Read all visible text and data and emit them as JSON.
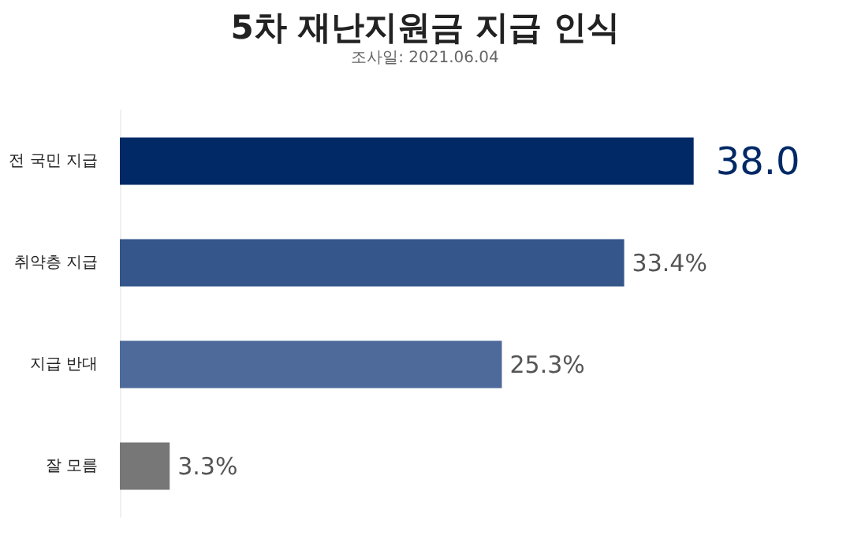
{
  "chart_data": {
    "type": "bar",
    "orientation": "horizontal",
    "title": "5차 재난지원금 지급 인식",
    "subtitle": "조사일: 2021.06.04",
    "categories": [
      "전 국민 지급",
      "취약층 지급",
      "지급 반대",
      "잘 모름"
    ],
    "values": [
      38.0,
      33.4,
      25.3,
      3.3
    ],
    "value_labels": [
      "38.0",
      "33.4%",
      "25.3%",
      "3.3%"
    ],
    "colors": [
      "#002966",
      "#34568b",
      "#4d6a9a",
      "#777777"
    ]
  }
}
